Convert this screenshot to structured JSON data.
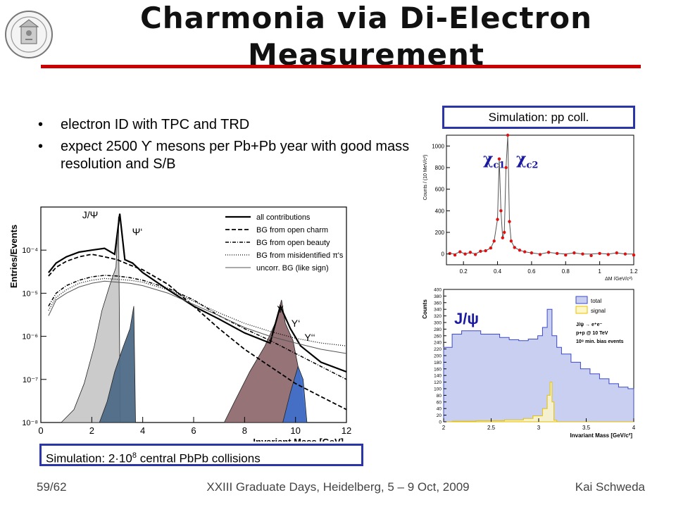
{
  "slide": {
    "title_line1": "Charmonia via Di-Electron",
    "title_line2": "Measurement",
    "bullets": [
      "electron ID with TPC and TRD",
      "expect 2500 ϒ mesons per Pb+Pb year with good mass resolution and S/B"
    ],
    "bullet_symbol": "•",
    "sim_pp": "Simulation:  pp coll.",
    "sim_pbpb_prefix": "Simulation:  2·10",
    "sim_pbpb_exp": "8",
    "sim_pbpb_suffix": " central PbPb collisions",
    "footer_left": "59/62",
    "footer_center": "XXIII Graduate Days, Heidelberg, 5 – 9 Oct, 2009",
    "footer_right": "Kai Schweda",
    "chi_c1": "χ",
    "chi_c1_sub": "c1",
    "chi_c2": "χ",
    "chi_c2_sub": "c2",
    "jpsi_label": "J/ψ",
    "colors": {
      "rule": "#cc0000",
      "box_border": "#2b35a8",
      "annot": "#1a1aa0"
    }
  },
  "chart_data": [
    {
      "type": "line",
      "ylabel": "Entries/Events",
      "xlabel": "Invariant Mass [GeV]",
      "xlim": [
        0,
        12
      ],
      "ylog": true,
      "ylim": [
        1e-08,
        0.001
      ],
      "x_ticks": [
        "0",
        "2",
        "4",
        "6",
        "8",
        "10",
        "12"
      ],
      "y_ticks": [
        "10⁻⁸",
        "10⁻⁷",
        "10⁻⁶",
        "10⁻⁵",
        "10⁻⁴"
      ],
      "annotations": [
        "J/Ψ",
        "Ψ‘",
        "Υ",
        "Υ‘",
        "Υ‘‘"
      ],
      "legend": [
        "all contributions",
        "BG from open charm",
        "BG from open beauty",
        "BG from misidentified π's",
        "uncorr. BG (like sign)"
      ],
      "legend_position": "top-right",
      "series": [
        {
          "name": "all contributions",
          "x": [
            0.3,
            0.6,
            1.0,
            1.5,
            2.0,
            2.5,
            2.9,
            3.1,
            3.3,
            3.6,
            4,
            5,
            6,
            7,
            8,
            9,
            9.4,
            9.8,
            10.2,
            11,
            12
          ],
          "y": [
            3e-05,
            5e-05,
            7e-05,
            9e-05,
            0.0001,
            0.00011,
            8e-05,
            0.0007,
            6e-05,
            5e-05,
            3e-05,
            1.2e-05,
            5e-06,
            2.5e-06,
            1.2e-06,
            7e-07,
            5e-06,
            1.5e-06,
            6e-07,
            2.5e-07,
            1.5e-07
          ]
        },
        {
          "name": "BG from open charm",
          "x": [
            0.3,
            0.6,
            1,
            1.5,
            2,
            2.5,
            3,
            3.5,
            4,
            5,
            6,
            7,
            8,
            9,
            10,
            11,
            12
          ],
          "y": [
            2.5e-05,
            4e-05,
            5.5e-05,
            7e-05,
            8e-05,
            7e-05,
            6e-05,
            4.5e-05,
            3.5e-05,
            1.6e-05,
            5e-06,
            1.5e-06,
            5e-07,
            2e-07,
            8e-08,
            4e-08,
            2e-08
          ]
        },
        {
          "name": "BG from open beauty",
          "x": [
            0.3,
            0.6,
            1,
            1.5,
            2,
            2.5,
            3,
            3.5,
            4,
            5,
            6,
            7,
            8,
            9,
            10,
            11,
            12
          ],
          "y": [
            5e-06,
            1e-05,
            1.5e-05,
            2e-05,
            2.4e-05,
            2.6e-05,
            2.5e-05,
            2.3e-05,
            2e-05,
            1.3e-05,
            7e-06,
            3e-06,
            1.5e-06,
            8e-07,
            4e-07,
            2e-07,
            1e-07
          ]
        },
        {
          "name": "BG from misidentified π's",
          "x": [
            0.3,
            0.6,
            1,
            1.5,
            2,
            2.5,
            3,
            3.5,
            4,
            5,
            6,
            7,
            8,
            9,
            10,
            11,
            12
          ],
          "y": [
            4e-06,
            8e-06,
            1.2e-05,
            1.7e-05,
            2e-05,
            2.2e-05,
            2.1e-05,
            2e-05,
            1.8e-05,
            1.2e-05,
            6.5e-06,
            3.5e-06,
            2e-06,
            1.3e-06,
            9e-07,
            7e-07,
            6e-07
          ]
        },
        {
          "name": "uncorr. BG (like sign)",
          "x": [
            0.3,
            0.6,
            1,
            1.5,
            2,
            2.5,
            3,
            3.5,
            4,
            5,
            6,
            7,
            8,
            9,
            10,
            11,
            12
          ],
          "y": [
            3e-06,
            7e-06,
            1e-05,
            1.4e-05,
            1.7e-05,
            1.9e-05,
            1.8e-05,
            1.7e-05,
            1.5e-05,
            1e-05,
            5.5e-06,
            3e-06,
            1.6e-06,
            1e-06,
            7e-07,
            5e-07,
            4e-07
          ]
        }
      ]
    },
    {
      "type": "scatter",
      "ylabel": "Counts / (10 MeV/c²)",
      "xlabel": "ΔM (GeV/c²)",
      "xlim": [
        0.1,
        1.2
      ],
      "ylim": [
        -100,
        1100
      ],
      "x_ticks": [
        "0.2",
        "0.4",
        "0.6",
        "0.8",
        "1",
        "1.2"
      ],
      "y_ticks": [
        "0",
        "200",
        "400",
        "600",
        "800",
        "1000"
      ],
      "series": [
        {
          "name": "data",
          "x": [
            0.12,
            0.15,
            0.18,
            0.21,
            0.24,
            0.27,
            0.3,
            0.33,
            0.36,
            0.38,
            0.4,
            0.41,
            0.42,
            0.43,
            0.44,
            0.45,
            0.46,
            0.47,
            0.48,
            0.5,
            0.53,
            0.56,
            0.6,
            0.65,
            0.7,
            0.75,
            0.8,
            0.85,
            0.9,
            0.95,
            1.0,
            1.05,
            1.1,
            1.15,
            1.2
          ],
          "y": [
            5,
            -10,
            20,
            0,
            15,
            -5,
            25,
            30,
            55,
            120,
            320,
            880,
            400,
            150,
            200,
            800,
            1100,
            300,
            120,
            60,
            35,
            20,
            10,
            -5,
            15,
            5,
            -10,
            10,
            0,
            -15,
            5,
            -5,
            10,
            0,
            -10
          ]
        }
      ]
    },
    {
      "type": "bar",
      "ylabel": "Counts",
      "xlabel": "Invariant Mass [GeV/c²]",
      "xlim": [
        2,
        4
      ],
      "ylim": [
        0,
        400
      ],
      "x_ticks": [
        "2",
        "2.5",
        "3",
        "3.5",
        "4"
      ],
      "y_ticks": [
        "0",
        "20",
        "40",
        "60",
        "80",
        "100",
        "120",
        "140",
        "160",
        "180",
        "200",
        "220",
        "240",
        "260",
        "280",
        "300",
        "320",
        "340",
        "360",
        "380",
        "400"
      ],
      "legend": [
        "total",
        "signal"
      ],
      "legend_position": "top-right",
      "info_text": [
        "J/ψ → e⁺e⁻",
        "p+p @ 10 TeV",
        "10⁸ min. bias events"
      ],
      "series": [
        {
          "name": "total",
          "x": [
            2.05,
            2.15,
            2.25,
            2.35,
            2.45,
            2.55,
            2.65,
            2.75,
            2.85,
            2.95,
            3.0,
            3.05,
            3.1,
            3.15,
            3.2,
            3.3,
            3.4,
            3.5,
            3.6,
            3.7,
            3.8,
            3.9,
            4.0
          ],
          "values": [
            225,
            265,
            275,
            275,
            265,
            265,
            255,
            248,
            245,
            250,
            260,
            285,
            340,
            260,
            225,
            205,
            180,
            160,
            145,
            130,
            115,
            105,
            100
          ]
        },
        {
          "name": "signal",
          "x": [
            2.05,
            2.3,
            2.6,
            2.8,
            2.9,
            3.0,
            3.05,
            3.08,
            3.1,
            3.12,
            3.15,
            3.2,
            3.3,
            3.5,
            4.0
          ],
          "values": [
            0,
            2,
            3,
            6,
            10,
            18,
            40,
            80,
            120,
            60,
            5,
            0,
            0,
            0,
            0
          ]
        }
      ]
    }
  ]
}
